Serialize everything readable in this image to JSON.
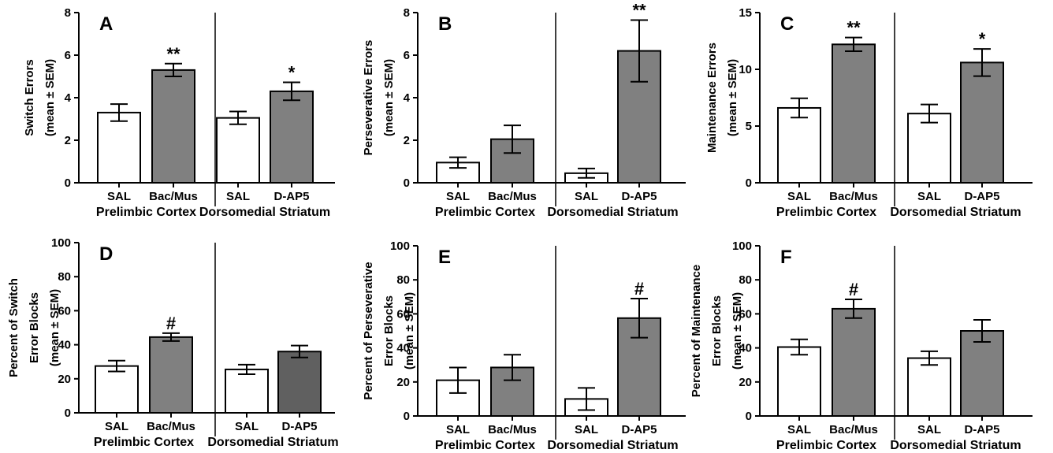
{
  "chart_data": [
    {
      "type": "bar",
      "panel": "A",
      "ylabel_lines": [
        "Switch Errors",
        "(mean ± SEM)"
      ],
      "ylim": [
        0,
        8
      ],
      "yticks": [
        0,
        2,
        4,
        6,
        8
      ],
      "categories": [
        "SAL",
        "Bac/Mus",
        "SAL",
        "D-AP5"
      ],
      "groups": [
        "Prelimbic Cortex",
        "Dorsomedial Striatum"
      ],
      "values": [
        3.3,
        5.3,
        3.05,
        4.3
      ],
      "errors": [
        0.4,
        0.3,
        0.3,
        0.42
      ],
      "fills": [
        "#ffffff",
        "#808080",
        "#ffffff",
        "#808080"
      ],
      "significance": [
        "",
        "**",
        "",
        "*"
      ]
    },
    {
      "type": "bar",
      "panel": "B",
      "ylabel_lines": [
        "Perseverative Errors",
        "(mean ± SEM)"
      ],
      "ylim": [
        0,
        8
      ],
      "yticks": [
        0,
        2,
        4,
        6,
        8
      ],
      "categories": [
        "SAL",
        "Bac/Mus",
        "SAL",
        "D-AP5"
      ],
      "groups": [
        "Prelimbic Cortex",
        "Dorsomedial Striatum"
      ],
      "values": [
        0.95,
        2.05,
        0.45,
        6.2
      ],
      "errors": [
        0.25,
        0.65,
        0.22,
        1.45
      ],
      "fills": [
        "#ffffff",
        "#808080",
        "#ffffff",
        "#808080"
      ],
      "significance": [
        "",
        "",
        "",
        "**"
      ]
    },
    {
      "type": "bar",
      "panel": "C",
      "ylabel_lines": [
        "Maintenance Errors",
        "(mean ± SEM)"
      ],
      "ylim": [
        0,
        15
      ],
      "yticks": [
        0,
        5,
        10,
        15
      ],
      "categories": [
        "SAL",
        "Bac/Mus",
        "SAL",
        "D-AP5"
      ],
      "groups": [
        "Prelimbic Cortex",
        "Dorsomedial Striatum"
      ],
      "values": [
        6.6,
        12.2,
        6.1,
        10.6
      ],
      "errors": [
        0.85,
        0.6,
        0.8,
        1.2
      ],
      "fills": [
        "#ffffff",
        "#808080",
        "#ffffff",
        "#808080"
      ],
      "significance": [
        "",
        "**",
        "",
        "*"
      ]
    },
    {
      "type": "bar",
      "panel": "D",
      "ylabel_lines": [
        "Percent of Switch",
        "Error Blocks",
        "(mean ± SEM)"
      ],
      "ylim": [
        0,
        100
      ],
      "yticks": [
        0,
        20,
        40,
        60,
        80,
        100
      ],
      "categories": [
        "SAL",
        "Bac/Mus",
        "SAL",
        "D-AP5"
      ],
      "groups": [
        "Prelimbic Cortex",
        "Dorsomedial Striatum"
      ],
      "values": [
        27.5,
        44.5,
        25.5,
        36
      ],
      "errors": [
        3.2,
        2.3,
        2.8,
        3.5
      ],
      "fills": [
        "#ffffff",
        "#808080",
        "#ffffff",
        "#606060"
      ],
      "significance": [
        "",
        "#",
        "",
        ""
      ]
    },
    {
      "type": "bar",
      "panel": "E",
      "ylabel_lines": [
        "Percent of Perseverative",
        "Error Blocks",
        "(mean ± SEM)"
      ],
      "ylim": [
        0,
        100
      ],
      "yticks": [
        0,
        20,
        40,
        60,
        80,
        100
      ],
      "categories": [
        "SAL",
        "Bac/Mus",
        "SAL",
        "D-AP5"
      ],
      "groups": [
        "Prelimbic Cortex",
        "Dorsomedial Striatum"
      ],
      "values": [
        21,
        28.5,
        10,
        57.5
      ],
      "errors": [
        7.5,
        7.5,
        6.5,
        11.5
      ],
      "fills": [
        "#ffffff",
        "#808080",
        "#ffffff",
        "#808080"
      ],
      "significance": [
        "",
        "",
        "",
        "#"
      ]
    },
    {
      "type": "bar",
      "panel": "F",
      "ylabel_lines": [
        "Percent of Maintenance",
        "Error Blocks",
        "(mean ± SEM)"
      ],
      "ylim": [
        0,
        100
      ],
      "yticks": [
        0,
        20,
        40,
        60,
        80,
        100
      ],
      "categories": [
        "SAL",
        "Bac/Mus",
        "SAL",
        "D-AP5"
      ],
      "groups": [
        "Prelimbic Cortex",
        "Dorsomedial Striatum"
      ],
      "values": [
        40.5,
        63,
        34,
        50
      ],
      "errors": [
        4.5,
        5.5,
        4,
        6.5
      ],
      "fills": [
        "#ffffff",
        "#808080",
        "#ffffff",
        "#808080"
      ],
      "significance": [
        "",
        "#",
        "",
        ""
      ]
    }
  ]
}
